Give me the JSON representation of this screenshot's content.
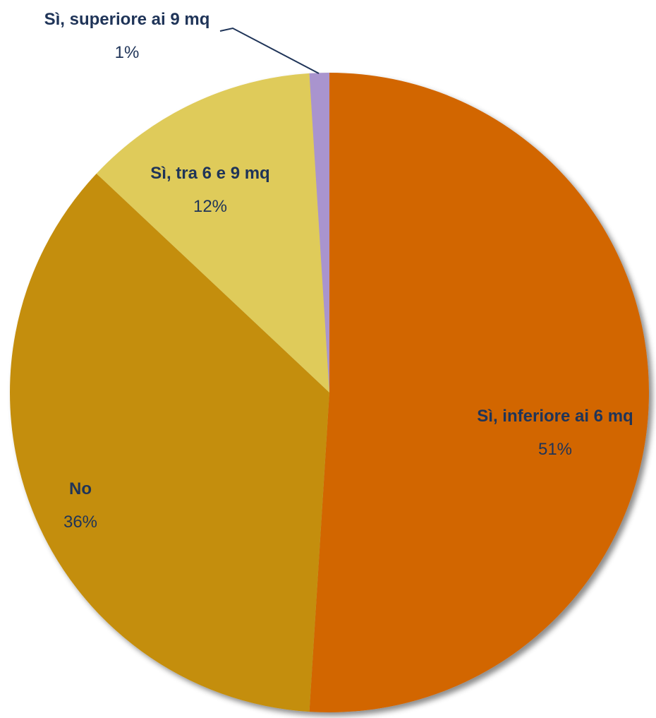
{
  "chart_data": {
    "type": "pie",
    "categories": [
      "Sì, inferiore ai 6 mq",
      "No",
      "Sì, tra 6 e 9 mq",
      "Sì, superiore ai 9 mq"
    ],
    "values": [
      51,
      36,
      12,
      1
    ],
    "value_labels": [
      "51%",
      "36%",
      "12%",
      "1%"
    ],
    "colors": [
      "#D26600",
      "#C48E10",
      "#DFCB5A",
      "#A994CE"
    ]
  }
}
